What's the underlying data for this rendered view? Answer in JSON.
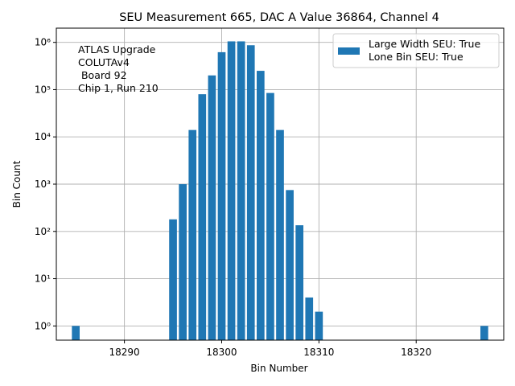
{
  "chart_data": {
    "type": "bar",
    "title": "SEU Measurement 665, DAC A Value 36864, Channel 4",
    "xlabel": "Bin Number",
    "ylabel": "Bin Count",
    "yscale": "log",
    "xlim": [
      18283.0,
      18329.0
    ],
    "ylim": [
      0.5,
      2000000
    ],
    "xticks": [
      18290,
      18300,
      18310,
      18320
    ],
    "yticks": [
      1,
      10,
      100,
      1000,
      10000,
      100000,
      1000000
    ],
    "ytick_labels": [
      "10⁰",
      "10¹",
      "10²",
      "10³",
      "10⁴",
      "10⁵",
      "10⁶"
    ],
    "grid": true,
    "bar_color": "#1f77b4",
    "annotation": [
      "ATLAS Upgrade",
      "COLUTAv4",
      " Board 92",
      "Chip 1, Run 210"
    ],
    "legend": {
      "position": "top-right",
      "entries": [
        "Large Width SEU: True",
        "Lone Bin SEU: True"
      ]
    },
    "bins": [
      18285,
      18295,
      18296,
      18297,
      18298,
      18299,
      18300,
      18301,
      18302,
      18303,
      18304,
      18305,
      18306,
      18307,
      18308,
      18309,
      18310,
      18327
    ],
    "values": [
      1,
      180,
      1000,
      14000,
      80000,
      200000,
      620000,
      1050000,
      1050000,
      870000,
      250000,
      85000,
      14000,
      750,
      135,
      4,
      2,
      1
    ]
  }
}
